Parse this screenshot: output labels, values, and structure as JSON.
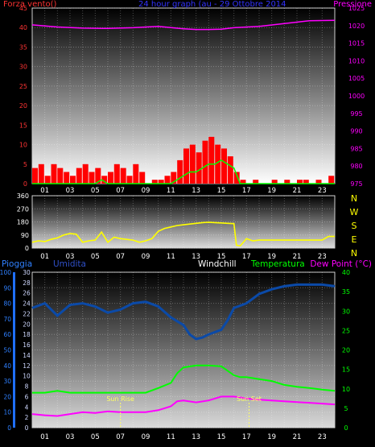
{
  "colors": {
    "wind": "#ff0000",
    "gust": "#00ff00",
    "pressure": "#ff00ff",
    "title": "#3333ff",
    "direction": "#ffff00",
    "humidity": "#3050c8",
    "humidity_line": "#0b4aa8",
    "temperature": "#00ff00",
    "dewpoint": "#ff00ff",
    "windchill": "#ffffff",
    "rain": "#2f80ff",
    "sun": "#ffff66",
    "label_red": "#ff3333"
  },
  "chart_data": [
    {
      "type": "bar",
      "title": "24 hour graph (au - 29 Ottobre 2014",
      "ylabel": "Forza vento()",
      "y2label": "Pressione",
      "x_ticks": [
        "01",
        "03",
        "05",
        "07",
        "09",
        "11",
        "13",
        "15",
        "17",
        "19",
        "21",
        "23"
      ],
      "xlim": [
        0,
        24
      ],
      "ylim": [
        0,
        45
      ],
      "y_ticks": [
        0,
        5,
        10,
        15,
        20,
        25,
        30,
        35,
        40,
        45
      ],
      "y2lim": [
        975,
        1025
      ],
      "y2_ticks": [
        975,
        980,
        985,
        990,
        995,
        1000,
        1005,
        1010,
        1015,
        1020,
        1025
      ],
      "grid": true,
      "series": [
        {
          "key": "wind",
          "type": "bar",
          "hours": [
            0,
            0.5,
            1,
            1.5,
            2,
            2.5,
            3,
            3.5,
            4,
            4.5,
            5,
            5.5,
            6,
            6.5,
            7,
            7.5,
            8,
            8.5,
            9,
            9.5,
            10,
            10.5,
            11,
            11.5,
            12,
            12.5,
            13,
            13.5,
            14,
            14.5,
            15,
            15.5,
            16,
            16.5,
            17,
            17.5,
            18,
            18.5,
            19,
            19.5,
            20,
            20.5,
            21,
            21.5,
            22,
            22.5,
            23,
            23.5
          ],
          "values": [
            4,
            5,
            2,
            5,
            4,
            3,
            2,
            4,
            5,
            3,
            4,
            2,
            3,
            5,
            4,
            2,
            5,
            3,
            0,
            1,
            1,
            2,
            3,
            6,
            9,
            10,
            8,
            11,
            12,
            10,
            9,
            7,
            3,
            1,
            0,
            1,
            0,
            0,
            1,
            0,
            1,
            0,
            1,
            1,
            0,
            1,
            0,
            2
          ]
        },
        {
          "key": "gust",
          "type": "line",
          "x": [
            0,
            2,
            4,
            5,
            5.5,
            6,
            7,
            8,
            9,
            10,
            11,
            11.5,
            12,
            12.5,
            13,
            13.5,
            14,
            14.5,
            15,
            15.5,
            16,
            16.5,
            17,
            24
          ],
          "y": [
            0,
            0,
            0,
            0,
            1,
            0,
            0,
            0,
            0,
            0,
            0,
            1,
            2,
            3,
            3,
            4,
            5,
            5,
            6,
            5,
            4,
            0,
            0,
            0
          ]
        },
        {
          "key": "pressure",
          "type": "line",
          "axis": "y2",
          "x": [
            0,
            2,
            4,
            6,
            8,
            10,
            12,
            13,
            14,
            15,
            16,
            18,
            20,
            22,
            24
          ],
          "y": [
            1020.2,
            1019.6,
            1019.3,
            1019.2,
            1019.4,
            1019.8,
            1019.1,
            1018.9,
            1018.9,
            1019.0,
            1019.4,
            1019.8,
            1020.6,
            1021.4,
            1021.5
          ]
        }
      ]
    },
    {
      "type": "line",
      "title": "",
      "x_ticks": [
        "01",
        "03",
        "05",
        "07",
        "09",
        "11",
        "13",
        "15",
        "17",
        "19",
        "21",
        "23"
      ],
      "xlim": [
        0,
        24
      ],
      "ylim": [
        0,
        360
      ],
      "y_ticks": [
        0,
        90,
        180,
        270,
        360
      ],
      "compass_labels": [
        "N",
        "W",
        "S",
        "E",
        "N"
      ],
      "grid": true,
      "series": [
        {
          "key": "direction",
          "x": [
            0,
            0.5,
            1,
            1.5,
            2,
            2.5,
            3,
            3.5,
            4,
            4.5,
            5,
            5.5,
            6,
            6.5,
            7,
            7.5,
            8,
            8.5,
            9,
            9.5,
            10,
            10.5,
            11,
            11.5,
            12,
            12.5,
            13,
            13.5,
            14,
            14.5,
            15,
            15.5,
            16,
            16.2,
            16.5,
            17,
            17.5,
            18,
            19,
            20,
            21,
            22,
            23,
            23.5,
            24
          ],
          "y": [
            40,
            50,
            45,
            60,
            70,
            90,
            100,
            95,
            40,
            50,
            55,
            110,
            40,
            75,
            65,
            60,
            55,
            40,
            50,
            65,
            115,
            135,
            145,
            155,
            160,
            165,
            170,
            175,
            178,
            175,
            173,
            170,
            168,
            20,
            15,
            65,
            50,
            55,
            55,
            55,
            55,
            55,
            55,
            80,
            80
          ]
        }
      ]
    },
    {
      "type": "line",
      "title": "",
      "legend": [
        "Pioggia",
        "Umidita",
        "Windchill",
        "Temperatura",
        "Dew Point (°C)"
      ],
      "x_ticks": [
        "01",
        "03",
        "05",
        "07",
        "09",
        "11",
        "13",
        "15",
        "17",
        "19",
        "21",
        "23"
      ],
      "xlim": [
        0,
        24
      ],
      "ylim": [
        0,
        100
      ],
      "y_ticks": [
        0,
        10,
        20,
        30,
        40,
        50,
        60,
        70,
        80,
        90,
        100
      ],
      "y_mid_ticks": [
        0,
        2,
        4,
        6,
        8,
        10,
        12,
        14,
        16,
        18,
        20,
        22,
        24,
        26,
        28,
        30
      ],
      "y2lim": [
        0,
        40
      ],
      "y2_ticks": [
        0,
        5,
        10,
        15,
        20,
        25,
        30,
        35,
        40
      ],
      "annotations": {
        "sunrise": "Sun Rise",
        "sunset": "Sun Set"
      },
      "sunrise_hour": 7.0,
      "sunset_hour": 17.2,
      "grid": true,
      "series": [
        {
          "key": "humidity",
          "axis": "y",
          "x": [
            0,
            1,
            2,
            3,
            4,
            5,
            6,
            7,
            8,
            9,
            10,
            11,
            12,
            12.5,
            13,
            13.5,
            14,
            15,
            15.5,
            16,
            17,
            18,
            19,
            20,
            21,
            22,
            23,
            24
          ],
          "y": [
            77,
            80,
            72,
            79,
            80,
            78,
            74,
            76,
            80,
            81,
            78,
            71,
            66,
            60,
            57,
            58,
            60,
            63,
            69,
            77,
            80,
            86,
            89,
            91,
            92,
            92,
            92,
            91
          ]
        },
        {
          "key": "temperature",
          "axis": "y2",
          "x": [
            0,
            1,
            2,
            3,
            4,
            5,
            6,
            7,
            8,
            9,
            10,
            11,
            11.5,
            12,
            13,
            14,
            15,
            16,
            16.5,
            17,
            18,
            19,
            20,
            21,
            22,
            23,
            24
          ],
          "y": [
            9,
            9,
            9.5,
            9,
            9,
            9,
            9,
            9,
            9,
            9,
            10.2,
            11.5,
            14,
            15.5,
            16,
            16,
            15.8,
            13.5,
            13,
            13,
            12.5,
            12,
            11,
            10.5,
            10.2,
            9.8,
            9.5
          ]
        },
        {
          "key": "dewpoint",
          "axis": "y2",
          "x": [
            0,
            1,
            2,
            3,
            4,
            5,
            6,
            7,
            8,
            9,
            10,
            11,
            11.5,
            12,
            13,
            14,
            15,
            16,
            16.5,
            17,
            18,
            19,
            20,
            21,
            22,
            23,
            24
          ],
          "y": [
            3.5,
            3.2,
            3,
            3.5,
            4,
            3.8,
            4.2,
            4,
            4,
            4,
            4.5,
            5.5,
            6.8,
            7,
            6.5,
            7,
            8,
            8,
            7.8,
            7.5,
            7.2,
            7,
            6.8,
            6.6,
            6.4,
            6.2,
            6
          ]
        }
      ]
    }
  ]
}
